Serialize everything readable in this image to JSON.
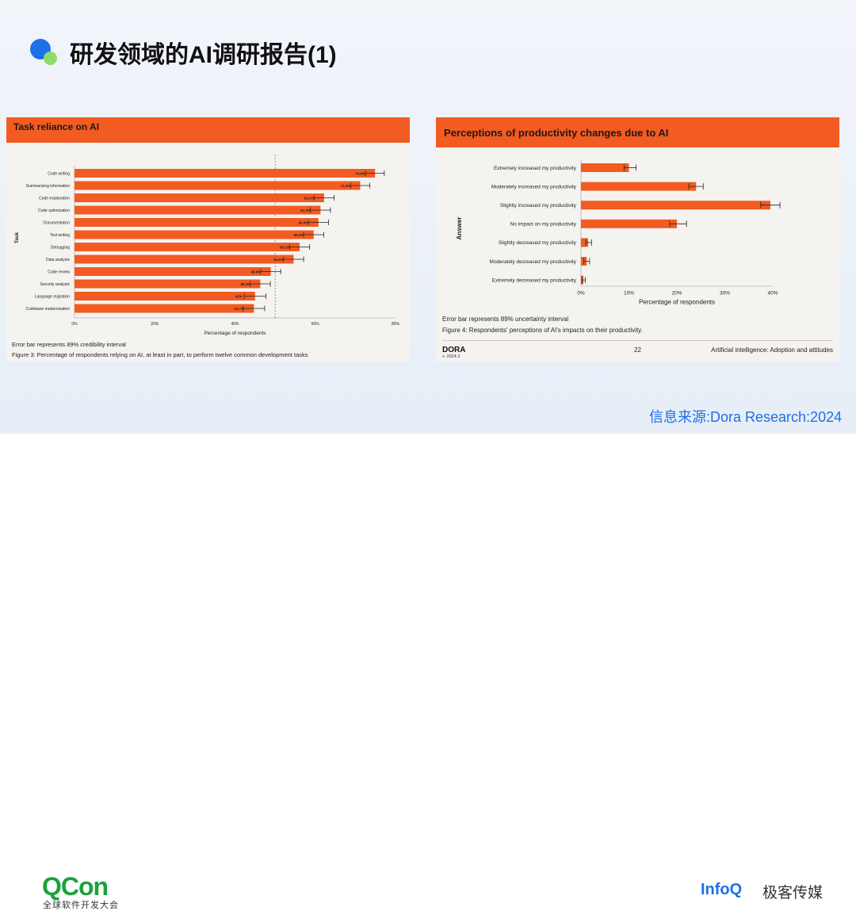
{
  "slide": {
    "title": "研发领域的AI调研报告(1)",
    "source": "信息来源:Dora Research:2024"
  },
  "footer": {
    "qcon_logo": "QCon",
    "qcon_sub": "全球软件开发大会",
    "infoq_logo": "InfoQ",
    "infoq_sub": "极客传媒"
  },
  "left_panel": {
    "header": "Task reliance on AI",
    "note1": "Error bar represents 89% credibility interval",
    "note2": "Figure 3: Percentage of respondents relying on AI, at least in part, to perform twelve common development tasks"
  },
  "right_panel": {
    "header": "Perceptions of productivity changes due to AI",
    "note1": "Error bar represents 89% uncertainty interval",
    "note2": "Figure 4: Respondents' perceptions of AI's impacts on their productivity.",
    "dora": "DORA",
    "version": "v. 2024.3",
    "page": "22",
    "footnote": "Artificial intelligence: Adoption and attitudes"
  },
  "colors": {
    "bar": "#f25b22",
    "accent": "#1f6fe8"
  },
  "chart_data": [
    {
      "type": "bar",
      "orientation": "horizontal",
      "xlabel": "Percentage of respondents",
      "ylabel": "Task",
      "xlim": [
        0,
        80
      ],
      "xticks": [
        "0%",
        "20%",
        "40%",
        "60%",
        "80%"
      ],
      "reference_line": 50,
      "categories": [
        "Code writing",
        "Summarizing information",
        "Code explanation",
        "Code optimization",
        "Documentation",
        "Test writing",
        "Debugging",
        "Data analysis",
        "Code review",
        "Security analysis",
        "Language migration",
        "Codebase modernization"
      ],
      "values": [
        74.9,
        71.2,
        62.2,
        61.3,
        60.8,
        59.6,
        56.1,
        54.6,
        48.9,
        46.3,
        45,
        44.7
      ],
      "labels": [
        "74.9%",
        "71.2%",
        "62.2%",
        "61.3%",
        "60.8%",
        "59.6%",
        "56.1%",
        "54.6%",
        "48.9%",
        "46.3%",
        "45%",
        "44.7%"
      ],
      "error_low": [
        72.5,
        68.8,
        59.7,
        58.8,
        58.3,
        57.1,
        53.6,
        52.1,
        46.4,
        43.8,
        42.3,
        42
      ],
      "error_high": [
        77.2,
        73.6,
        64.7,
        63.8,
        63.3,
        62.1,
        58.6,
        57.1,
        51.4,
        48.8,
        47.7,
        47.4
      ]
    },
    {
      "type": "bar",
      "orientation": "horizontal",
      "xlabel": "Percentage of respondents",
      "ylabel": "Answer",
      "xlim": [
        0,
        40
      ],
      "xticks": [
        "0%",
        "10%",
        "20%",
        "30%",
        "40%"
      ],
      "categories": [
        "Extremely increased my productivity",
        "Moderately increased my productivity",
        "Slightly increased my productivity",
        "No impact on my productivity",
        "Slightly decreased my productivity",
        "Moderately decreased my productivity",
        "Extremely decreased my productivity"
      ],
      "values": [
        10,
        24,
        39.5,
        20,
        1.5,
        1.2,
        0.5
      ],
      "error_low": [
        9,
        22.5,
        37.5,
        18.5,
        1,
        0.6,
        0.2
      ],
      "error_high": [
        11.5,
        25.5,
        41.5,
        22,
        2.2,
        1.8,
        0.9
      ]
    }
  ]
}
